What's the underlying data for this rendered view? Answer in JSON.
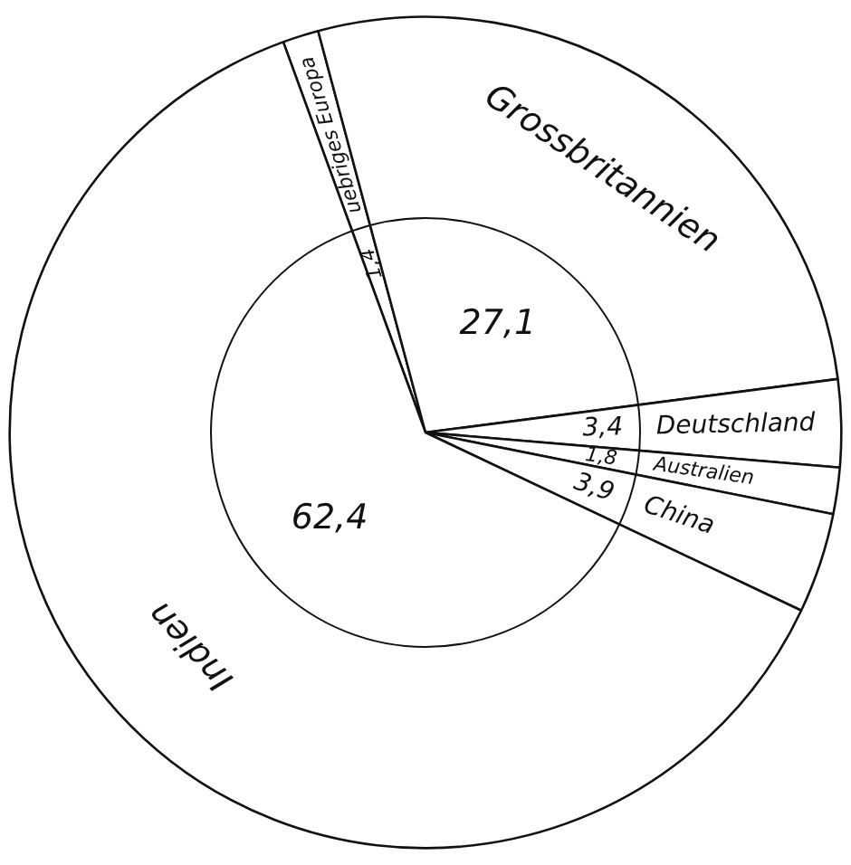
{
  "chart_data": {
    "type": "pie",
    "categories": [
      "uebriges Europa",
      "Grossbritannien",
      "Deutschland",
      "Australien",
      "China",
      "Indien"
    ],
    "values": [
      1.4,
      27.1,
      3.4,
      1.8,
      3.9,
      62.4
    ],
    "value_labels": [
      "1,4",
      "27,1",
      "3,4",
      "1,8",
      "3,9",
      "62,4"
    ],
    "colors": [
      "#ffffff",
      "#ffffff",
      "#ffffff",
      "#ffffff",
      "#ffffff",
      "#ffffff"
    ],
    "legend": false
  }
}
